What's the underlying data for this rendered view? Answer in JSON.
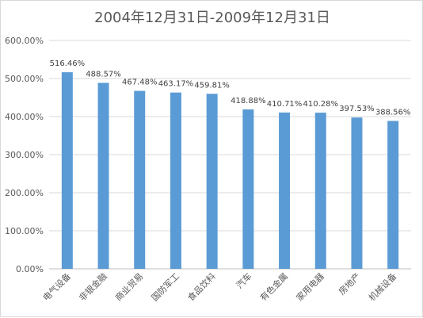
{
  "chart_data": {
    "type": "bar",
    "title": "2004年12月31日-2009年12月31日",
    "xlabel": "",
    "ylabel": "",
    "categories": [
      "电气设备",
      "非银金融",
      "商业贸易",
      "国防军工",
      "食品饮料",
      "汽车",
      "有色金属",
      "家用电器",
      "房地产",
      "机械设备"
    ],
    "values": [
      516.46,
      488.57,
      467.48,
      463.17,
      459.81,
      418.88,
      410.71,
      410.28,
      397.53,
      388.56
    ],
    "data_labels": [
      "516.46%",
      "488.57%",
      "467.48%",
      "463.17%",
      "459.81%",
      "418.88%",
      "410.71%",
      "410.28%",
      "397.53%",
      "388.56%"
    ],
    "ylim": [
      0,
      600
    ],
    "y_ticks": [
      "0.00%",
      "100.00%",
      "200.00%",
      "300.00%",
      "400.00%",
      "500.00%",
      "600.00%"
    ],
    "grid": true,
    "legend": "none",
    "colors": {
      "bar": "#5b9bd5"
    }
  }
}
